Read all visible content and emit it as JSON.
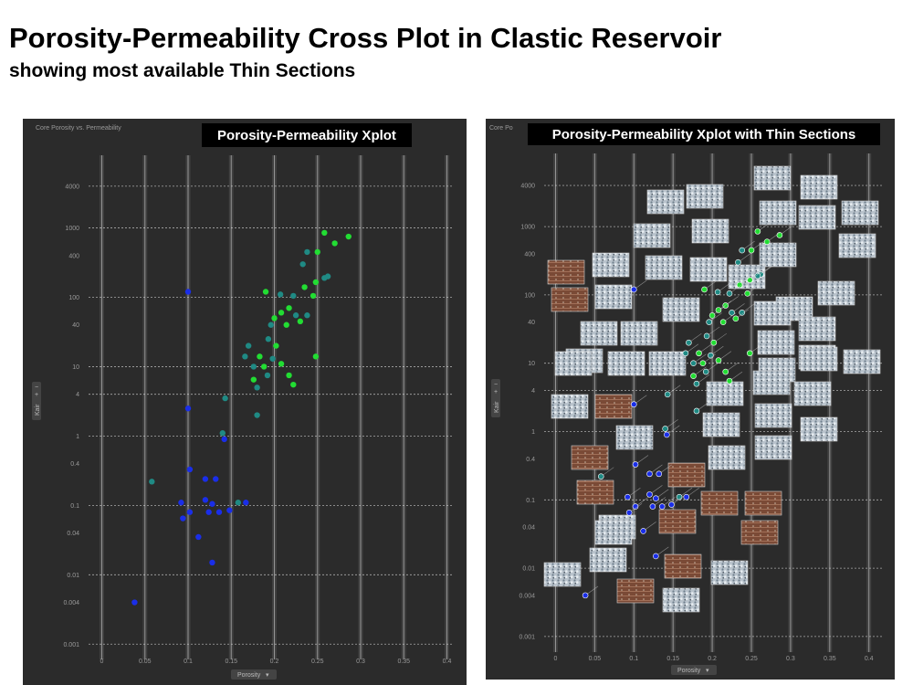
{
  "page": {
    "title": "Porosity-Permeability Cross Plot in Clastic Reservoir",
    "subtitle": "showing most available Thin Sections"
  },
  "panels": [
    {
      "banner": "Porosity-Permeability Xplot",
      "corner_label": "Core Porosity vs. Permeability"
    },
    {
      "banner": "Porosity-Permeability Xplot with Thin Sections",
      "corner_label": "Core Po"
    }
  ],
  "controls": {
    "x_selector": "Porosity",
    "y_selector": "Kair",
    "zoom_in": "+",
    "zoom_out": "−"
  },
  "colors": {
    "background": "#2b2b2b",
    "grid_vertical": "#d8d8d8",
    "grid_dashed": "#e0e0e0",
    "low_perm_points": "#1a2ee8",
    "mid_points": "#1f8a84",
    "high_perm_points": "#22dd33",
    "banner_bg": "#000000"
  },
  "chart_data": [
    {
      "type": "scatter",
      "title": "Porosity-Permeability Xplot",
      "xlabel": "Porosity",
      "ylabel": "Kair",
      "x_scale": "linear",
      "y_scale": "log",
      "xlim": [
        -0.05,
        0.42
      ],
      "ylim": [
        0.0004,
        15000
      ],
      "x_ticks": [
        "0",
        "0.05",
        "0.1",
        "0.15",
        "0.2",
        "0.25",
        "0.3",
        "0.35",
        "0.4"
      ],
      "y_ticks": [
        "4000",
        "1000",
        "400",
        "100",
        "40",
        "10",
        "4",
        "1",
        "0.4",
        "0.1",
        "0.04",
        "0.01",
        "0.004",
        "0.001"
      ],
      "grid": true,
      "points": [
        {
          "x": 0.1,
          "y": 120,
          "color": "blue"
        },
        {
          "x": 0.1,
          "y": 2.5,
          "color": "blue"
        },
        {
          "x": 0.143,
          "y": 3.5,
          "color": "teal"
        },
        {
          "x": 0.14,
          "y": 1.1,
          "color": "teal"
        },
        {
          "x": 0.142,
          "y": 0.9,
          "color": "blue"
        },
        {
          "x": 0.058,
          "y": 0.22,
          "color": "teal"
        },
        {
          "x": 0.102,
          "y": 0.33,
          "color": "blue"
        },
        {
          "x": 0.12,
          "y": 0.24,
          "color": "blue"
        },
        {
          "x": 0.132,
          "y": 0.24,
          "color": "blue"
        },
        {
          "x": 0.092,
          "y": 0.11,
          "color": "blue"
        },
        {
          "x": 0.12,
          "y": 0.12,
          "color": "blue"
        },
        {
          "x": 0.128,
          "y": 0.105,
          "color": "blue"
        },
        {
          "x": 0.158,
          "y": 0.11,
          "color": "teal"
        },
        {
          "x": 0.167,
          "y": 0.11,
          "color": "blue"
        },
        {
          "x": 0.102,
          "y": 0.08,
          "color": "blue"
        },
        {
          "x": 0.124,
          "y": 0.08,
          "color": "blue"
        },
        {
          "x": 0.136,
          "y": 0.08,
          "color": "blue"
        },
        {
          "x": 0.148,
          "y": 0.085,
          "color": "blue"
        },
        {
          "x": 0.094,
          "y": 0.065,
          "color": "blue"
        },
        {
          "x": 0.112,
          "y": 0.035,
          "color": "blue"
        },
        {
          "x": 0.128,
          "y": 0.015,
          "color": "blue"
        },
        {
          "x": 0.038,
          "y": 0.004,
          "color": "blue"
        },
        {
          "x": 0.258,
          "y": 850,
          "color": "green"
        },
        {
          "x": 0.286,
          "y": 750,
          "color": "green"
        },
        {
          "x": 0.27,
          "y": 600,
          "color": "green"
        },
        {
          "x": 0.238,
          "y": 450,
          "color": "teal"
        },
        {
          "x": 0.25,
          "y": 450,
          "color": "green"
        },
        {
          "x": 0.233,
          "y": 300,
          "color": "teal"
        },
        {
          "x": 0.262,
          "y": 200,
          "color": "teal"
        },
        {
          "x": 0.258,
          "y": 190,
          "color": "teal"
        },
        {
          "x": 0.248,
          "y": 165,
          "color": "green"
        },
        {
          "x": 0.235,
          "y": 140,
          "color": "green"
        },
        {
          "x": 0.19,
          "y": 120,
          "color": "green"
        },
        {
          "x": 0.207,
          "y": 110,
          "color": "teal"
        },
        {
          "x": 0.222,
          "y": 105,
          "color": "teal"
        },
        {
          "x": 0.245,
          "y": 105,
          "color": "green"
        },
        {
          "x": 0.217,
          "y": 70,
          "color": "green"
        },
        {
          "x": 0.208,
          "y": 60,
          "color": "green"
        },
        {
          "x": 0.225,
          "y": 55,
          "color": "teal"
        },
        {
          "x": 0.238,
          "y": 55,
          "color": "teal"
        },
        {
          "x": 0.2,
          "y": 50,
          "color": "green"
        },
        {
          "x": 0.23,
          "y": 45,
          "color": "green"
        },
        {
          "x": 0.214,
          "y": 40,
          "color": "green"
        },
        {
          "x": 0.196,
          "y": 40,
          "color": "teal"
        },
        {
          "x": 0.193,
          "y": 25,
          "color": "teal"
        },
        {
          "x": 0.17,
          "y": 20,
          "color": "teal"
        },
        {
          "x": 0.202,
          "y": 20,
          "color": "green"
        },
        {
          "x": 0.166,
          "y": 14,
          "color": "teal"
        },
        {
          "x": 0.183,
          "y": 14,
          "color": "green"
        },
        {
          "x": 0.198,
          "y": 13,
          "color": "teal"
        },
        {
          "x": 0.248,
          "y": 14,
          "color": "green"
        },
        {
          "x": 0.176,
          "y": 10,
          "color": "teal"
        },
        {
          "x": 0.188,
          "y": 10,
          "color": "green"
        },
        {
          "x": 0.208,
          "y": 11,
          "color": "green"
        },
        {
          "x": 0.217,
          "y": 7.5,
          "color": "green"
        },
        {
          "x": 0.176,
          "y": 6.5,
          "color": "green"
        },
        {
          "x": 0.192,
          "y": 7.5,
          "color": "teal"
        },
        {
          "x": 0.222,
          "y": 5.5,
          "color": "green"
        },
        {
          "x": 0.18,
          "y": 5,
          "color": "teal"
        },
        {
          "x": 0.18,
          "y": 2,
          "color": "teal"
        }
      ]
    },
    {
      "type": "scatter",
      "title": "Porosity-Permeability Xplot with Thin Sections",
      "xlabel": "Porosity",
      "ylabel": "Kair",
      "x_scale": "linear",
      "y_scale": "log",
      "xlim": [
        -0.05,
        0.42
      ],
      "ylim": [
        0.0004,
        15000
      ],
      "x_ticks": [
        "0",
        "0.05",
        "0.1",
        "0.15",
        "0.2",
        "0.25",
        "0.3",
        "0.35",
        "0.4"
      ],
      "y_ticks": [
        "4000",
        "1000",
        "400",
        "100",
        "40",
        "10",
        "4",
        "1",
        "0.4",
        "0.1",
        "0.04",
        "0.01",
        "0.004",
        "0.001"
      ],
      "grid": true,
      "thin_section_thumbnails": 60,
      "same_points_as": "Porosity-Permeability Xplot"
    }
  ]
}
